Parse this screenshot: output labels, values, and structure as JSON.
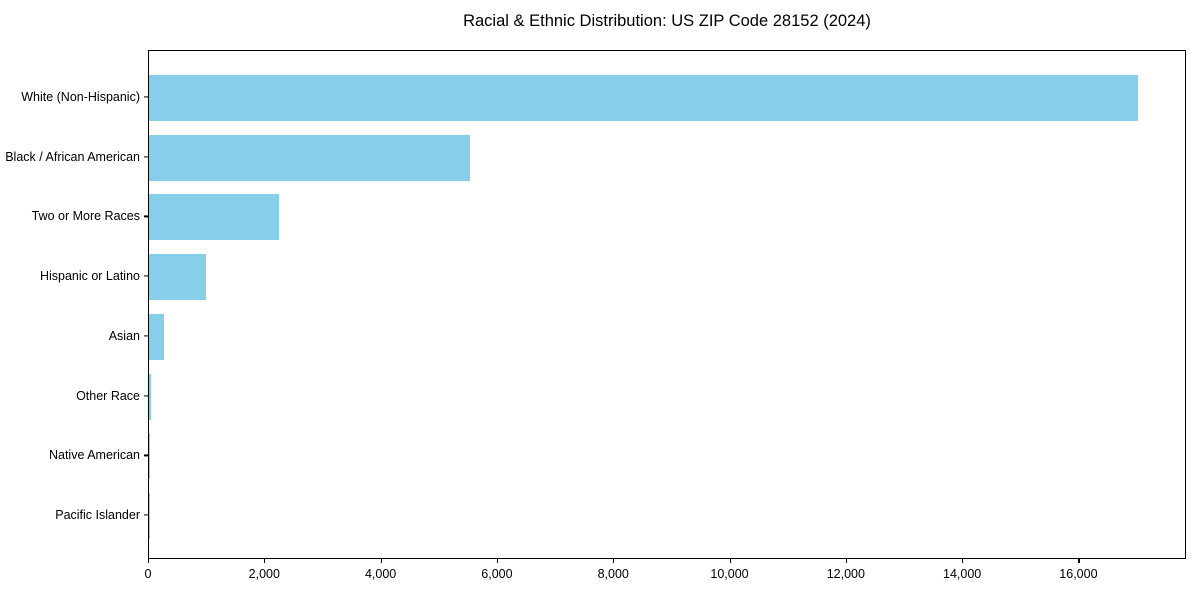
{
  "title": "Racial & Ethnic Distribution: US ZIP Code 28152 (2024)",
  "colors": {
    "bar": "#87CEEB",
    "text": "#000000",
    "spine": "#000000",
    "background": "#FFFFFF"
  },
  "chart_data": {
    "type": "bar",
    "orientation": "horizontal",
    "title": "Racial & Ethnic Distribution: US ZIP Code 28152 (2024)",
    "xlabel": "",
    "ylabel": "",
    "categories": [
      "White (Non-Hispanic)",
      "Black / African American",
      "Two or More Races",
      "Hispanic or Latino",
      "Asian",
      "Other Race",
      "Native American",
      "Pacific Islander"
    ],
    "values": [
      17000,
      5520,
      2240,
      980,
      260,
      30,
      15,
      5
    ],
    "bar_color": "#87CEEB",
    "xlim": [
      0,
      17850
    ],
    "x_ticks": [
      0,
      2000,
      4000,
      6000,
      8000,
      10000,
      12000,
      14000,
      16000
    ],
    "x_tick_labels": [
      "0",
      "2,000",
      "4,000",
      "6,000",
      "8,000",
      "10,000",
      "12,000",
      "14,000",
      "16,000"
    ],
    "grid": false,
    "legend": "none"
  }
}
